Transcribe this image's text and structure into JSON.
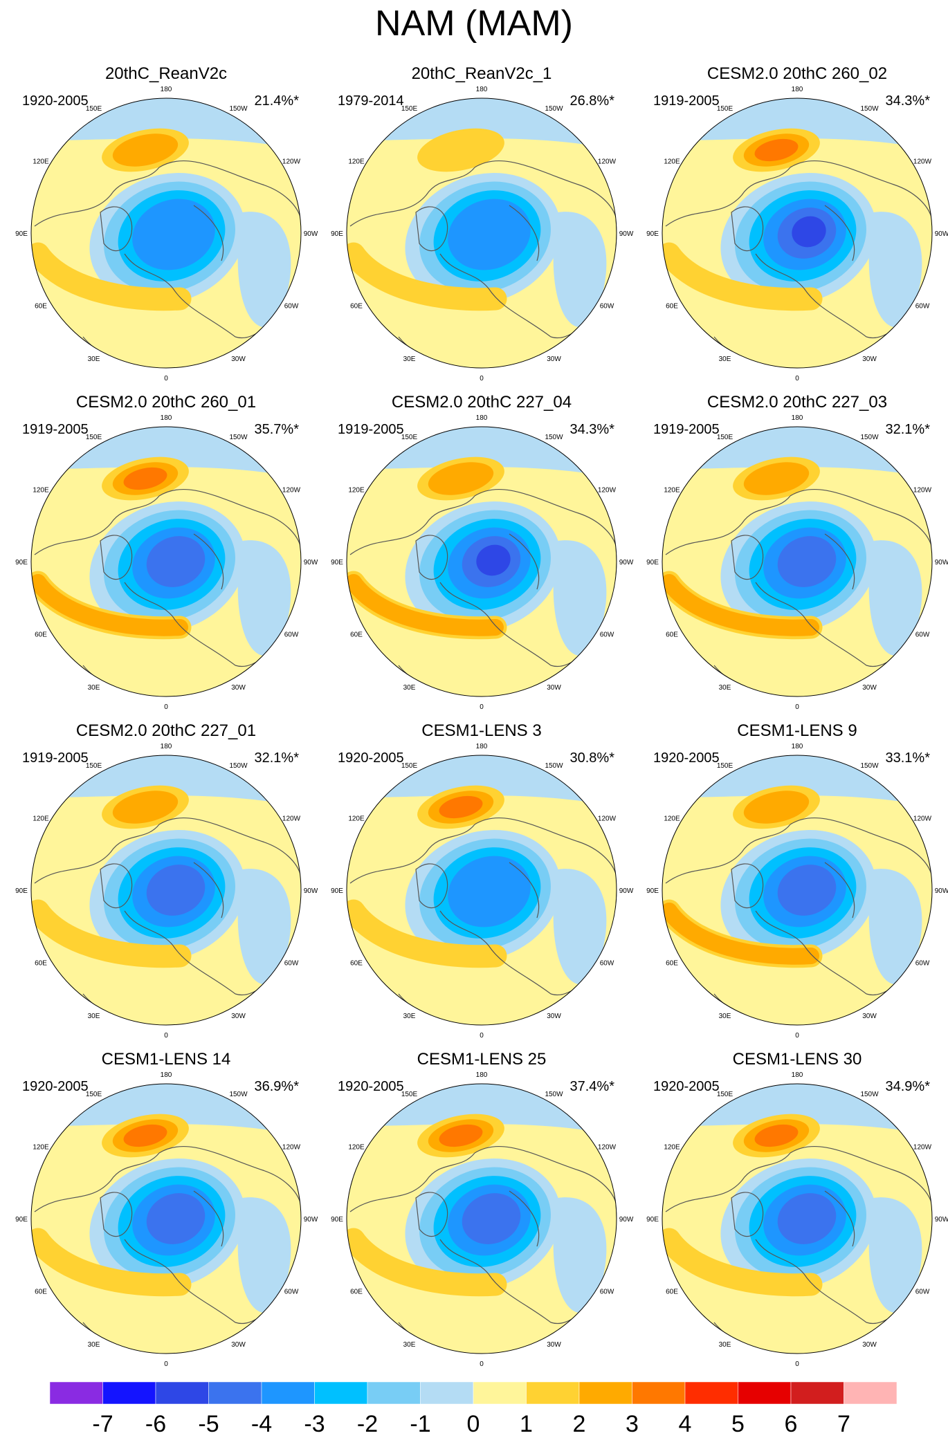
{
  "title": "NAM (MAM)",
  "colors": {
    "levels": [
      "#8a2be2",
      "#1414ff",
      "#2e47e6",
      "#3b73ee",
      "#1e96ff",
      "#00c0ff",
      "#78cdf5",
      "#b4dcf4",
      "#fff59a",
      "#ffd232",
      "#ffaa00",
      "#ff7800",
      "#ff2d00",
      "#e60000",
      "#d21e1e",
      "#ffb4b4"
    ],
    "land_outline": "#555555",
    "circle_outline": "#000000"
  },
  "chart_data": {
    "type": "polar stereographic contour maps",
    "variable": "NAM (MAM)",
    "longitude_labels": [
      "180",
      "150W",
      "150E",
      "120W",
      "120E",
      "90W",
      "90E",
      "60W",
      "60E",
      "30W",
      "30E",
      "0"
    ],
    "colorbar": {
      "ticks": [
        "-7",
        "-6",
        "-5",
        "-4",
        "-3",
        "-2",
        "-1",
        "0",
        "1",
        "2",
        "3",
        "4",
        "5",
        "6",
        "7"
      ],
      "boundaries": [
        -7,
        -6,
        -5,
        -4,
        -3,
        -2,
        -1,
        0,
        1,
        2,
        3,
        4,
        5,
        6,
        7
      ]
    },
    "panels": [
      {
        "title": "20thC_ReanV2c",
        "period": "1920-2005",
        "variance": "21.4%*",
        "low_min": -4,
        "pacific_high": 2.5,
        "atlantic_high": 2
      },
      {
        "title": "20thC_ReanV2c_1",
        "period": "1979-2014",
        "variance": "26.8%*",
        "low_min": -4,
        "pacific_high": 2,
        "atlantic_high": 1.8
      },
      {
        "title": "CESM2.0 20thC 260_02",
        "period": "1919-2005",
        "variance": "34.3%*",
        "low_min": -6,
        "pacific_high": 3.5,
        "atlantic_high": 2
      },
      {
        "title": "CESM2.0 20thC 260_01",
        "period": "1919-2005",
        "variance": "35.7%*",
        "low_min": -5,
        "pacific_high": 3.3,
        "atlantic_high": 2.5
      },
      {
        "title": "CESM2.0 20thC 227_04",
        "period": "1919-2005",
        "variance": "34.3%*",
        "low_min": -6,
        "pacific_high": 3,
        "atlantic_high": 2.3
      },
      {
        "title": "CESM2.0 20thC 227_03",
        "period": "1919-2005",
        "variance": "32.1%*",
        "low_min": -5,
        "pacific_high": 2.6,
        "atlantic_high": 3
      },
      {
        "title": "CESM2.0 20thC 227_01",
        "period": "1919-2005",
        "variance": "32.1%*",
        "low_min": -5,
        "pacific_high": 2.3,
        "atlantic_high": 2
      },
      {
        "title": "CESM1-LENS 3",
        "period": "1920-2005",
        "variance": "30.8%*",
        "low_min": -4,
        "pacific_high": 3.3,
        "atlantic_high": 1.6
      },
      {
        "title": "CESM1-LENS 9",
        "period": "1920-2005",
        "variance": "33.1%*",
        "low_min": -5,
        "pacific_high": 3,
        "atlantic_high": 2.2
      },
      {
        "title": "CESM1-LENS 14",
        "period": "1920-2005",
        "variance": "36.9%*",
        "low_min": -5,
        "pacific_high": 3.6,
        "atlantic_high": 1.6
      },
      {
        "title": "CESM1-LENS 25",
        "period": "1920-2005",
        "variance": "37.4%*",
        "low_min": -5,
        "pacific_high": 3.5,
        "atlantic_high": 1.2
      },
      {
        "title": "CESM1-LENS 30",
        "period": "1920-2005",
        "variance": "34.9%*",
        "low_min": -5,
        "pacific_high": 3.8,
        "atlantic_high": 1.2
      }
    ]
  }
}
